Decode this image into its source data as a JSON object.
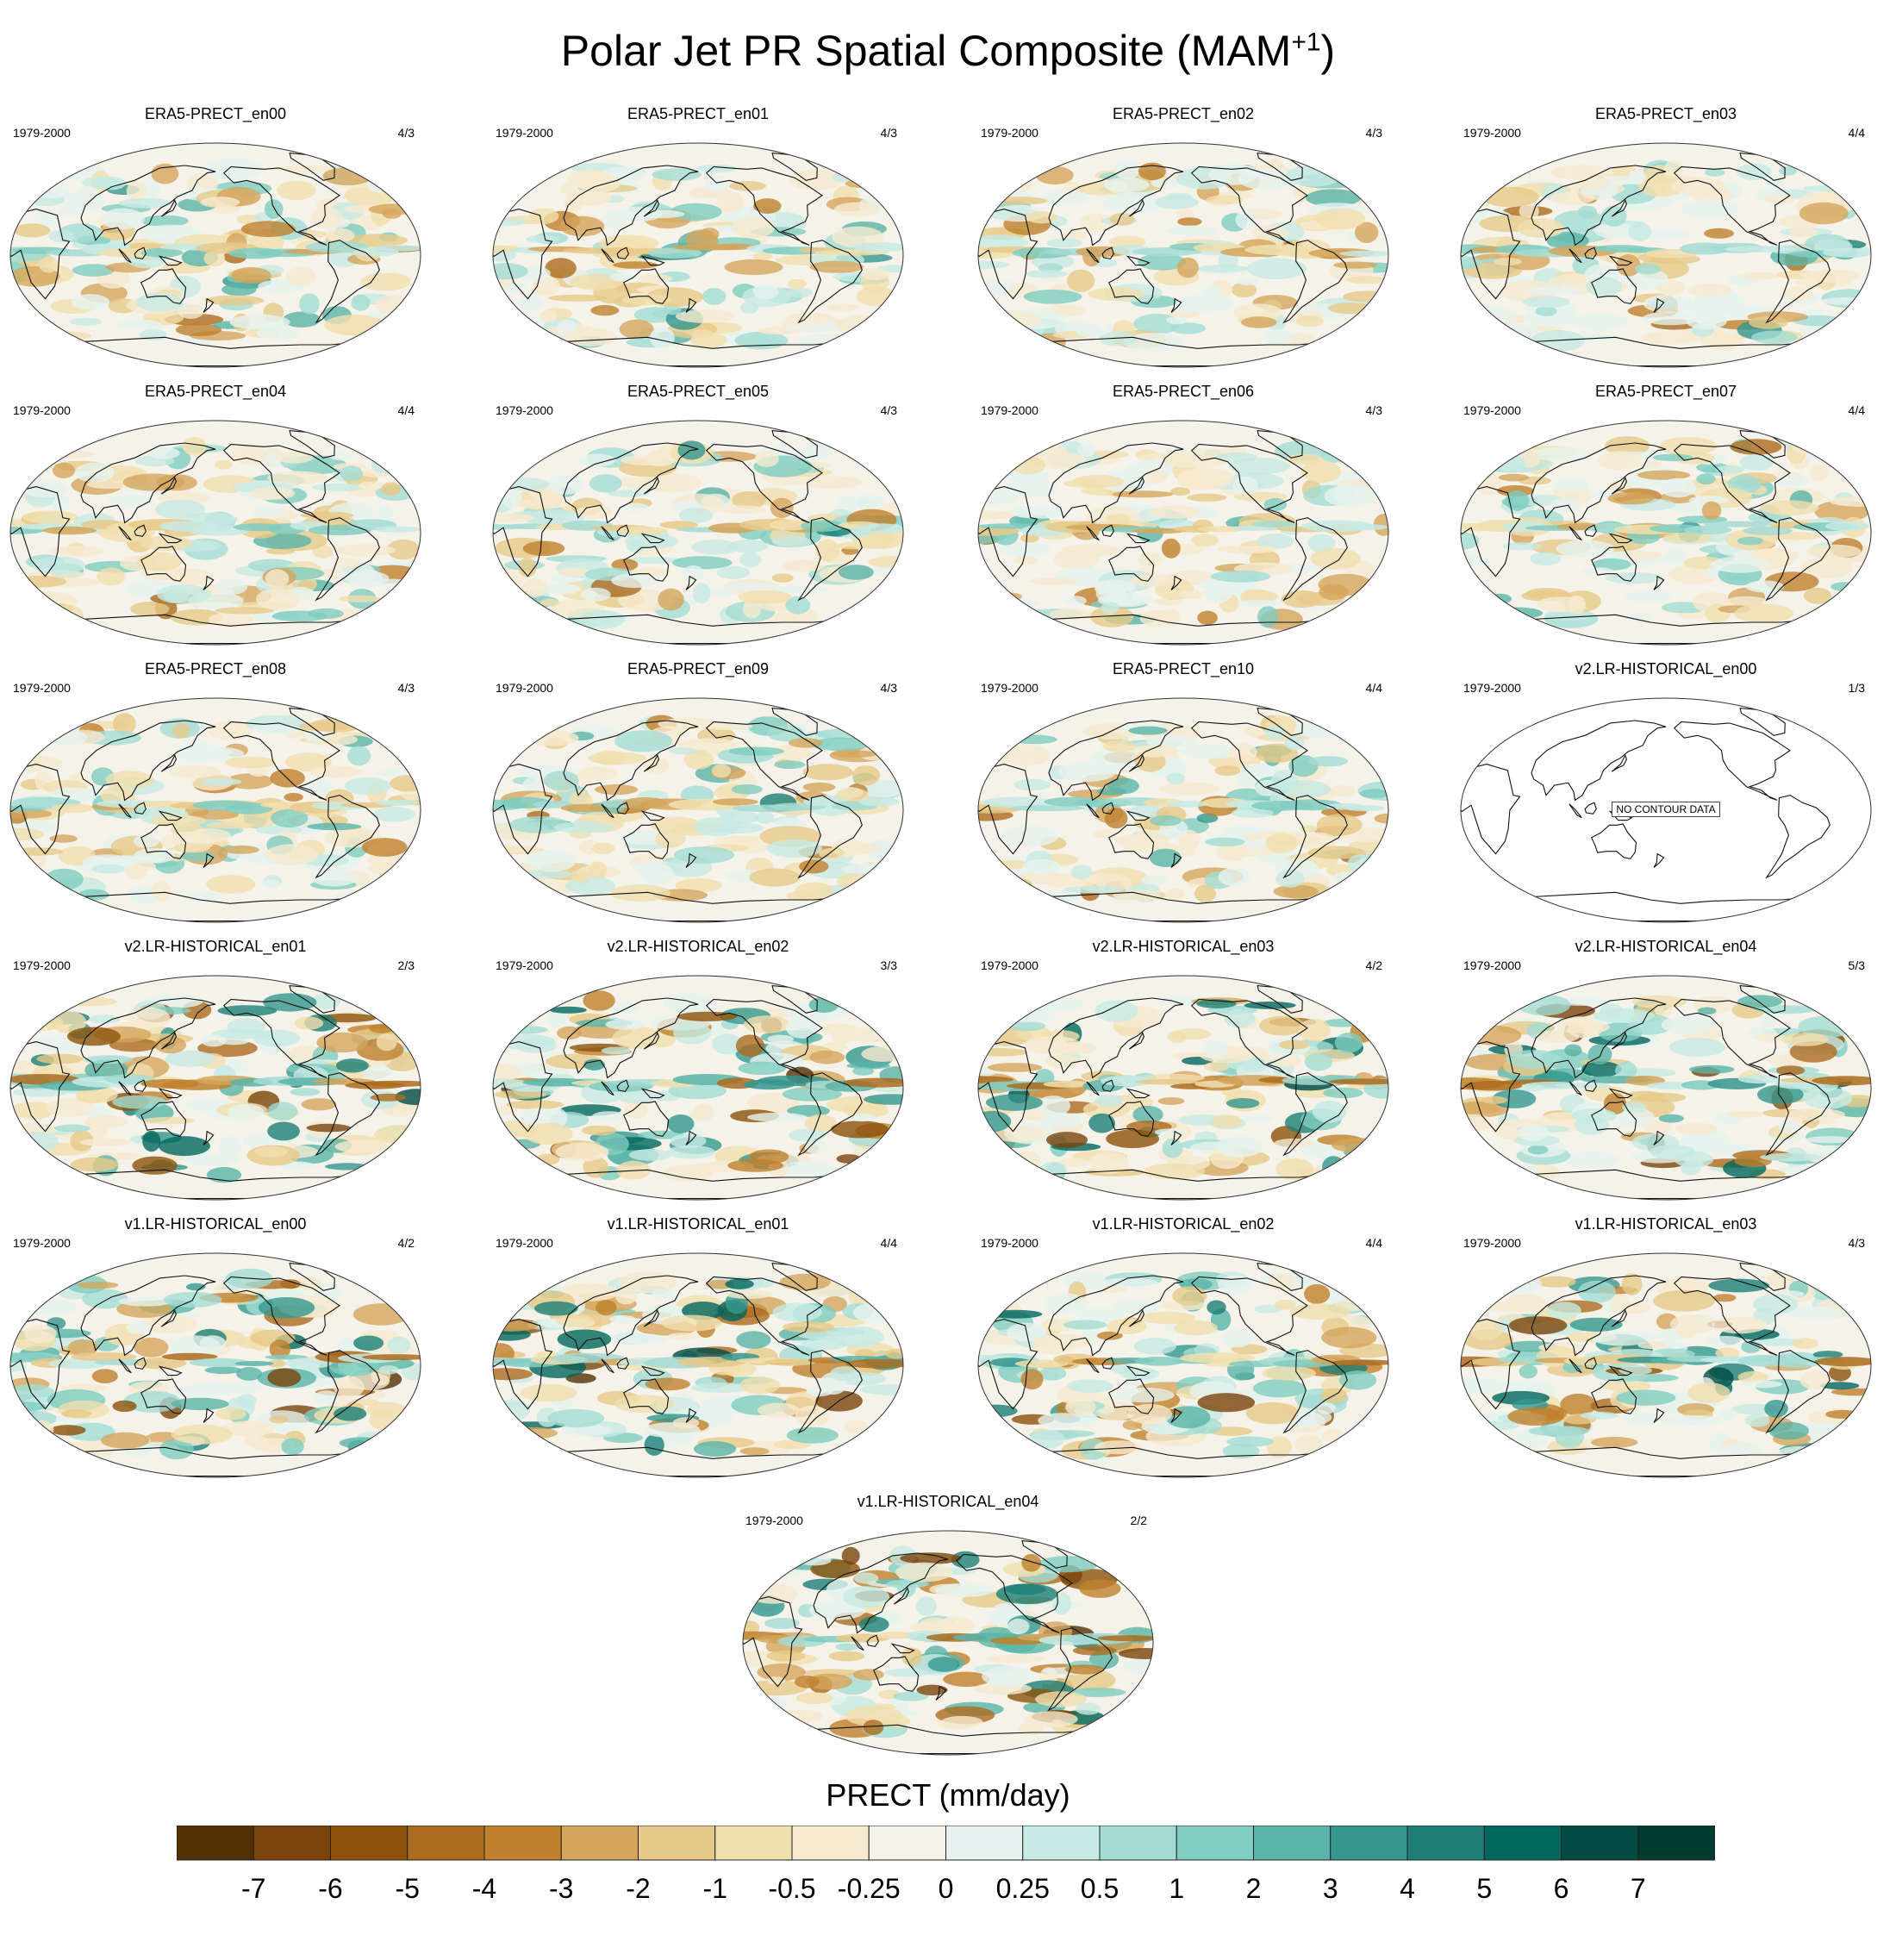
{
  "title": {
    "main": "Polar Jet PR Spatial Composite (MAM",
    "sup": "+1",
    "close": ")"
  },
  "chart_data": {
    "type": "heatmap",
    "projection": "Robinson (global, Pacific-centered)",
    "panels": [
      {
        "title": "ERA5-PRECT_en00",
        "period": "1979-2000",
        "count": "4/3",
        "field": "era5",
        "seed": 1
      },
      {
        "title": "ERA5-PRECT_en01",
        "period": "1979-2000",
        "count": "4/3",
        "field": "era5",
        "seed": 2
      },
      {
        "title": "ERA5-PRECT_en02",
        "period": "1979-2000",
        "count": "4/3",
        "field": "era5",
        "seed": 3
      },
      {
        "title": "ERA5-PRECT_en03",
        "period": "1979-2000",
        "count": "4/4",
        "field": "era5",
        "seed": 4
      },
      {
        "title": "ERA5-PRECT_en04",
        "period": "1979-2000",
        "count": "4/4",
        "field": "era5",
        "seed": 5
      },
      {
        "title": "ERA5-PRECT_en05",
        "period": "1979-2000",
        "count": "4/3",
        "field": "era5",
        "seed": 6
      },
      {
        "title": "ERA5-PRECT_en06",
        "period": "1979-2000",
        "count": "4/3",
        "field": "era5",
        "seed": 7
      },
      {
        "title": "ERA5-PRECT_en07",
        "period": "1979-2000",
        "count": "4/4",
        "field": "era5",
        "seed": 8
      },
      {
        "title": "ERA5-PRECT_en08",
        "period": "1979-2000",
        "count": "4/3",
        "field": "era5",
        "seed": 9
      },
      {
        "title": "ERA5-PRECT_en09",
        "period": "1979-2000",
        "count": "4/3",
        "field": "era5",
        "seed": 10
      },
      {
        "title": "ERA5-PRECT_en10",
        "period": "1979-2000",
        "count": "4/4",
        "field": "era5",
        "seed": 11
      },
      {
        "title": "v2.LR-HISTORICAL_en00",
        "period": "1979-2000",
        "count": "1/3",
        "field": "none",
        "seed": 12,
        "note": "NO CONTOUR DATA"
      },
      {
        "title": "v2.LR-HISTORICAL_en01",
        "period": "1979-2000",
        "count": "2/3",
        "field": "model",
        "seed": 13
      },
      {
        "title": "v2.LR-HISTORICAL_en02",
        "period": "1979-2000",
        "count": "3/3",
        "field": "model",
        "seed": 14
      },
      {
        "title": "v2.LR-HISTORICAL_en03",
        "period": "1979-2000",
        "count": "4/2",
        "field": "model",
        "seed": 15
      },
      {
        "title": "v2.LR-HISTORICAL_en04",
        "period": "1979-2000",
        "count": "5/3",
        "field": "model",
        "seed": 16
      },
      {
        "title": "v1.LR-HISTORICAL_en00",
        "period": "1979-2000",
        "count": "4/2",
        "field": "model",
        "seed": 17
      },
      {
        "title": "v1.LR-HISTORICAL_en01",
        "period": "1979-2000",
        "count": "4/4",
        "field": "model",
        "seed": 18
      },
      {
        "title": "v1.LR-HISTORICAL_en02",
        "period": "1979-2000",
        "count": "4/4",
        "field": "model",
        "seed": 19
      },
      {
        "title": "v1.LR-HISTORICAL_en03",
        "period": "1979-2000",
        "count": "4/3",
        "field": "model",
        "seed": 20
      },
      {
        "title": "v1.LR-HISTORICAL_en04",
        "period": "1979-2000",
        "count": "2/2",
        "field": "model",
        "seed": 21
      }
    ],
    "colorbar": {
      "label": "PRECT (mm/day)",
      "levels": [
        "-7",
        "-6",
        "-5",
        "-4",
        "-3",
        "-2",
        "-1",
        "-0.5",
        "-0.25",
        "0",
        "0.25",
        "0.5",
        "1",
        "2",
        "3",
        "4",
        "5",
        "6",
        "7"
      ],
      "colors": [
        "#543005",
        "#7a430b",
        "#8c510a",
        "#ab6c20",
        "#bf812d",
        "#d4a55c",
        "#e7c98a",
        "#f1dfae",
        "#f6ead0",
        "#f5f2ea",
        "#e6f2ef",
        "#c7eae4",
        "#a4dcd3",
        "#80cdc1",
        "#5ab4a8",
        "#35978f",
        "#1d7f77",
        "#01665e",
        "#024a42",
        "#003c30"
      ]
    }
  }
}
